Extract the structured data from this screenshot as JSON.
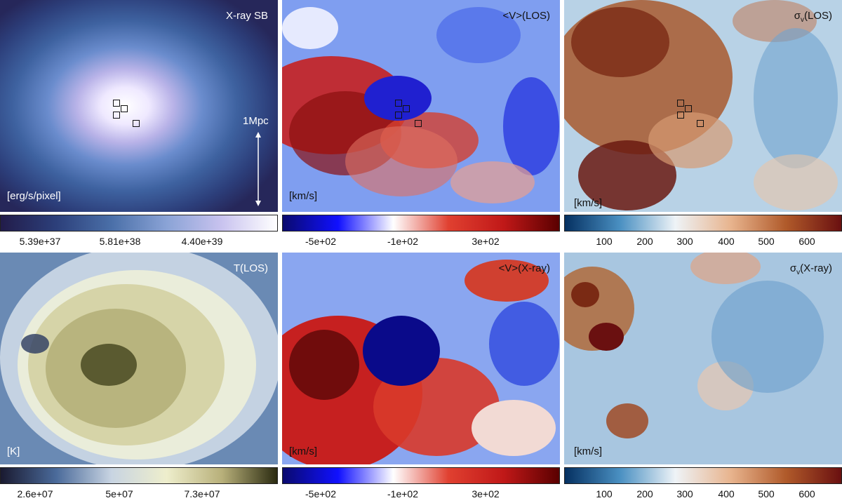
{
  "panels": [
    {
      "id": "xray-sb",
      "title": "X-ray SB",
      "unit": "[erg/s/pixel]",
      "title_color": "#ffffff",
      "unit_color": "#ffffff",
      "colormap": [
        "#221c4a",
        "#2c3f7a",
        "#4a6fa8",
        "#8aa3d6",
        "#c9c3ef",
        "#ffffff"
      ],
      "colorbar_ticks": [
        "5.39e+37",
        "5.81e+38",
        "4.40e+39"
      ],
      "scale_bar_label": "1Mpc",
      "markers": 4
    },
    {
      "id": "v-los",
      "title": "<V>(LOS)",
      "unit": "[km/s]",
      "title_color": "#111111",
      "unit_color": "#111111",
      "colormap": [
        "#0a0a6e",
        "#1010ff",
        "#ffffff",
        "#e04030",
        "#c01818",
        "#5a0000"
      ],
      "colorbar_ticks": [
        "-5e+02",
        "-1e+02",
        "3e+02"
      ],
      "markers": 4
    },
    {
      "id": "sigma-los",
      "title_main": "σ",
      "title_sub": "v",
      "title_rest": "(LOS)",
      "unit": "[km/s]",
      "title_color": "#111111",
      "unit_color": "#111111",
      "colormap": [
        "#053061",
        "#4a90c2",
        "#eef3f7",
        "#e8b48e",
        "#b05a2a",
        "#6a1010"
      ],
      "colorbar_ticks": [
        "100",
        "200",
        "300",
        "400",
        "500",
        "600"
      ],
      "markers": 4
    },
    {
      "id": "t-los",
      "title": "T(LOS)",
      "unit": "[K]",
      "title_color": "#ffffff",
      "unit_color": "#ffffff",
      "colormap": [
        "#1a1a30",
        "#4a6a9a",
        "#c8d4e2",
        "#eeeecc",
        "#b8b07a",
        "#2a2a10"
      ],
      "colorbar_ticks": [
        "2.6e+07",
        "5e+07",
        "7.3e+07"
      ],
      "markers": 0
    },
    {
      "id": "v-xray",
      "title": "<V>(X-ray)",
      "unit": "[km/s]",
      "title_color": "#111111",
      "unit_color": "#111111",
      "colormap": [
        "#0a0a6e",
        "#1010ff",
        "#ffffff",
        "#e04030",
        "#c01818",
        "#5a0000"
      ],
      "colorbar_ticks": [
        "-5e+02",
        "-1e+02",
        "3e+02"
      ],
      "markers": 0
    },
    {
      "id": "sigma-xray",
      "title_main": "σ",
      "title_sub": "v",
      "title_rest": "(X-ray)",
      "unit": "[km/s]",
      "title_color": "#111111",
      "unit_color": "#111111",
      "colormap": [
        "#053061",
        "#4a90c2",
        "#eef3f7",
        "#e8b48e",
        "#b05a2a",
        "#6a1010"
      ],
      "colorbar_ticks": [
        "100",
        "200",
        "300",
        "400",
        "500",
        "600"
      ],
      "markers": 0
    }
  ]
}
